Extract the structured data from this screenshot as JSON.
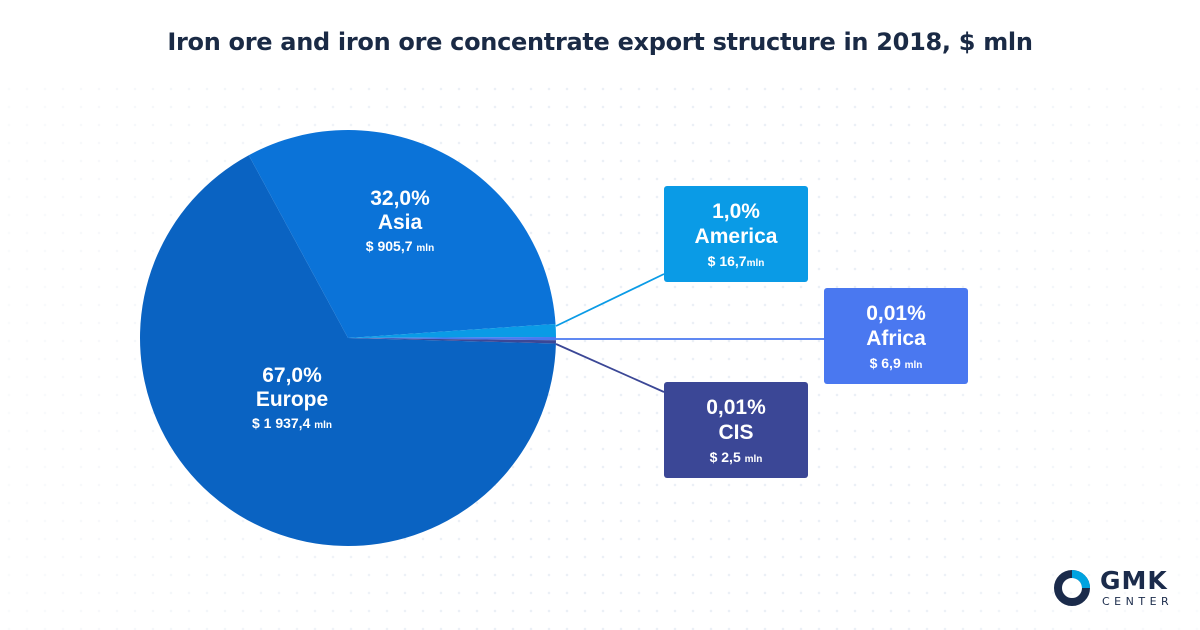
{
  "chart_data": {
    "type": "pie",
    "title": "Iron ore and iron ore concentrate export structure in 2018, $ mln",
    "slices": [
      {
        "name": "Europe",
        "percent": 67.0,
        "value": 1937.4,
        "pct_label": "67,0%",
        "value_label": "$ 1 937,4",
        "unit": "mln",
        "color": "#0a63c2"
      },
      {
        "name": "Asia",
        "percent": 32.0,
        "value": 905.7,
        "pct_label": "32,0%",
        "value_label": "$ 905,7",
        "unit": "mln",
        "color": "#0b73d8"
      },
      {
        "name": "America",
        "percent": 1.0,
        "value": 16.7,
        "pct_label": "1,0%",
        "value_label": "$ 16,7",
        "unit": "mln",
        "color": "#0a9be6"
      },
      {
        "name": "Africa",
        "percent": 0.01,
        "value": 6.9,
        "pct_label": "0,01%",
        "value_label": "$ 6,9",
        "unit": "mln",
        "color": "#4a78f0"
      },
      {
        "name": "CIS",
        "percent": 0.01,
        "value": 2.5,
        "pct_label": "0,01%",
        "value_label": "$ 2,5",
        "unit": "mln",
        "color": "#3b4796"
      }
    ]
  },
  "logo": {
    "name": "GMK",
    "sub": "CENTER",
    "accent": "#00a3e0",
    "dark": "#1b2b4b"
  }
}
